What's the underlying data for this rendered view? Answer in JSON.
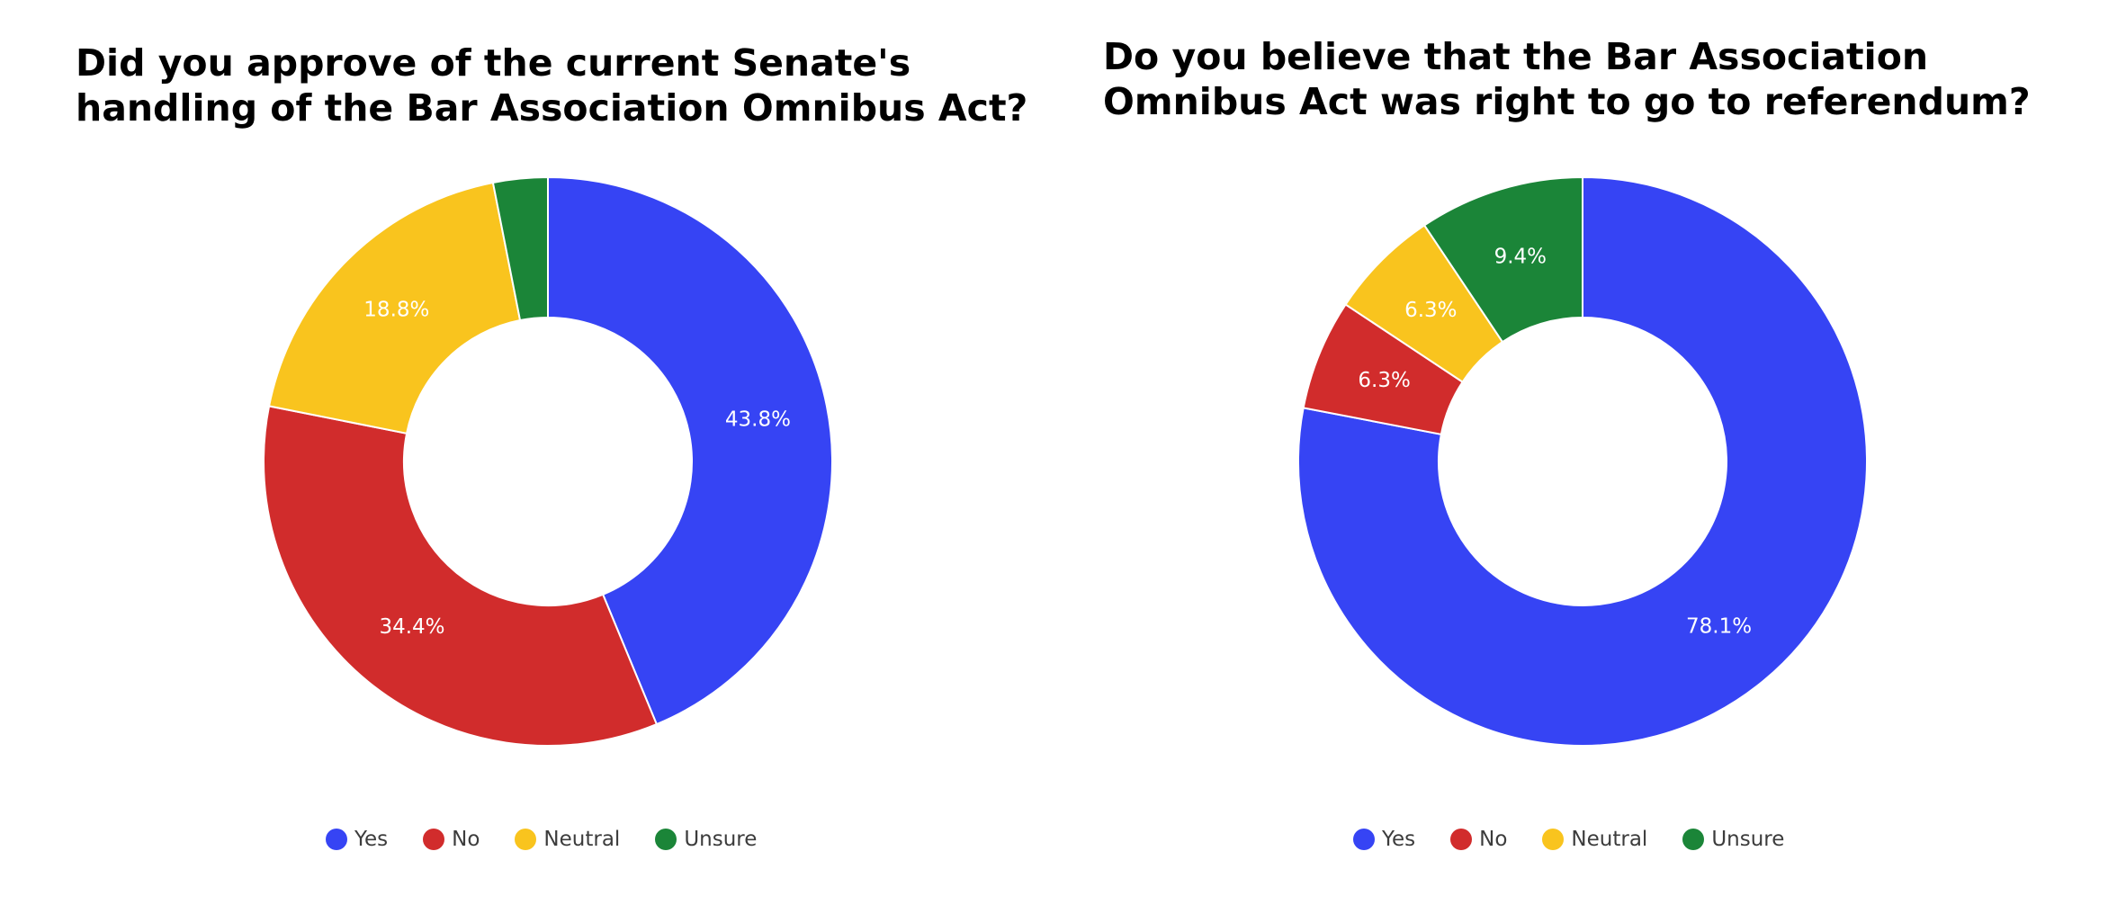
{
  "chart_data": [
    {
      "type": "pie",
      "donut": true,
      "title": "Did you approve of the current Senate's handling of the Bar Association Omnibus Act?",
      "title_lines": [
        "Did you approve of the current Senate's",
        "handling of the Bar Association Omnibus Act?"
      ],
      "categories": [
        "Yes",
        "No",
        "Neutral",
        "Unsure"
      ],
      "values": [
        43.8,
        34.4,
        18.8,
        3.1
      ],
      "value_labels": [
        "43.8%",
        "34.4%",
        "18.8%",
        ""
      ],
      "colors": [
        "#3644f4",
        "#d12c2c",
        "#f9c41e",
        "#1b8538"
      ],
      "legend_position": "bottom"
    },
    {
      "type": "pie",
      "donut": true,
      "title": "Do you believe that the Bar Association Omnibus Act was right to go to referendum?",
      "title_lines": [
        "Do you believe that the Bar Association",
        "Omnibus Act was right to go to referendum?"
      ],
      "categories": [
        "Yes",
        "No",
        "Neutral",
        "Unsure"
      ],
      "values": [
        78.1,
        6.3,
        6.3,
        9.4
      ],
      "value_labels": [
        "78.1%",
        "6.3%",
        "6.3%",
        "9.4%"
      ],
      "colors": [
        "#3644f4",
        "#d12c2c",
        "#f9c41e",
        "#1b8538"
      ],
      "legend_position": "bottom"
    }
  ]
}
